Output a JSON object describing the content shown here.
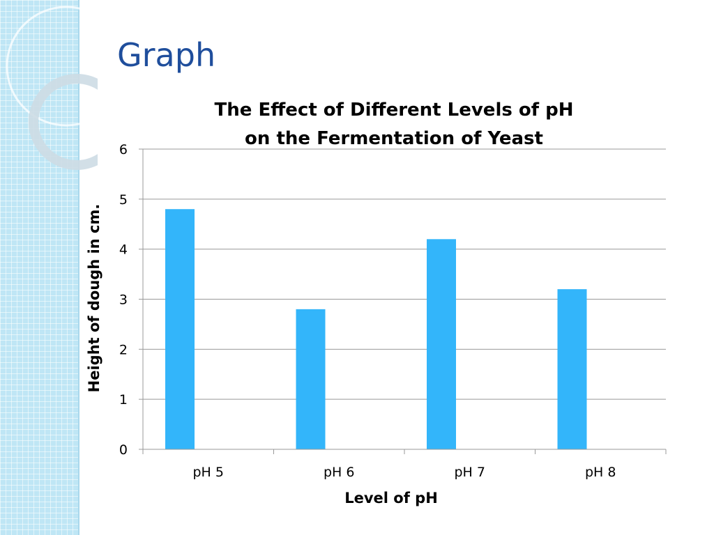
{
  "slide": {
    "title": "Graph"
  },
  "theme": {
    "bar_color": "#33b5fa",
    "title_color": "#1f4e9c",
    "side_strip_color": "#bfe6f5",
    "gridline_color": "#999999"
  },
  "chart_data": {
    "type": "bar",
    "title": [
      "The Effect of Different Levels of pH",
      "on the Fermentation of Yeast"
    ],
    "xlabel": "Level of pH",
    "ylabel": "Height of dough in cm.",
    "categories": [
      "pH 5",
      "pH 6",
      "pH 7",
      "pH 8"
    ],
    "values": [
      4.8,
      2.8,
      4.2,
      3.2
    ],
    "ylim": [
      0,
      6
    ],
    "yticks": [
      "0",
      "1",
      "2",
      "3",
      "4",
      "5",
      "6"
    ],
    "grid": true,
    "legend": "none"
  }
}
